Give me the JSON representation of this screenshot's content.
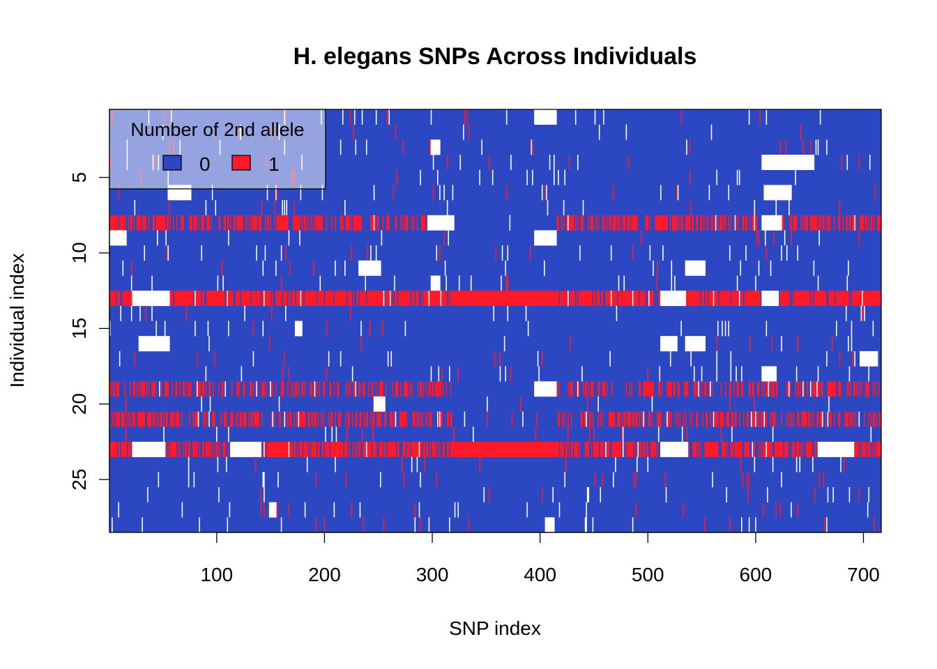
{
  "chart_data": {
    "type": "heatmap",
    "title": "H. elegans SNPs Across Individuals",
    "xlabel": "SNP index",
    "ylabel": "Individual index",
    "xlim": [
      1,
      716
    ],
    "ylim": [
      1,
      28
    ],
    "x_ticks": [
      100,
      200,
      300,
      400,
      500,
      600,
      700
    ],
    "y_ticks": [
      5,
      10,
      15,
      20,
      25
    ],
    "y_reversed": true,
    "n_snps": 716,
    "n_individuals": 28,
    "missing_color": "#FFFFFF",
    "legend": {
      "title": "Number of 2nd allele",
      "placement": "top-left",
      "entries": [
        {
          "label": "0",
          "value": 0,
          "color": "#2B47C2"
        },
        {
          "label": "1",
          "value": 1,
          "color": "#FF1A2A"
        }
      ]
    },
    "heterozygous_individuals": [
      {
        "individual": 8,
        "density": 0.55
      },
      {
        "individual": 13,
        "density": 0.85
      },
      {
        "individual": 19,
        "density": 0.45
      },
      {
        "individual": 21,
        "density": 0.5
      },
      {
        "individual": 23,
        "density": 0.7
      }
    ],
    "solid_blocks": [
      {
        "individual": 13,
        "value": 1,
        "snp_range": [
          318,
          415
        ]
      },
      {
        "individual": 23,
        "value": 1,
        "snp_range": [
          318,
          415
        ]
      }
    ],
    "missing_blocks": [
      {
        "individual": 1,
        "snp_range": [
          395,
          415
        ]
      },
      {
        "individual": 3,
        "snp_range": [
          299,
          307
        ]
      },
      {
        "individual": 4,
        "snp_range": [
          606,
          654
        ]
      },
      {
        "individual": 6,
        "snp_range": [
          55,
          76
        ]
      },
      {
        "individual": 6,
        "snp_range": [
          608,
          633
        ]
      },
      {
        "individual": 8,
        "snp_range": [
          296,
          320
        ]
      },
      {
        "individual": 8,
        "snp_range": [
          606,
          624
        ]
      },
      {
        "individual": 9,
        "snp_range": [
          1,
          16
        ]
      },
      {
        "individual": 9,
        "snp_range": [
          395,
          415
        ]
      },
      {
        "individual": 11,
        "snp_range": [
          232,
          252
        ]
      },
      {
        "individual": 11,
        "snp_range": [
          535,
          553
        ]
      },
      {
        "individual": 12,
        "snp_range": [
          299,
          307
        ]
      },
      {
        "individual": 13,
        "snp_range": [
          22,
          55
        ]
      },
      {
        "individual": 13,
        "snp_range": [
          512,
          535
        ]
      },
      {
        "individual": 13,
        "snp_range": [
          606,
          621
        ]
      },
      {
        "individual": 15,
        "snp_range": [
          173,
          179
        ]
      },
      {
        "individual": 16,
        "snp_range": [
          28,
          56
        ]
      },
      {
        "individual": 16,
        "snp_range": [
          512,
          527
        ]
      },
      {
        "individual": 16,
        "snp_range": [
          535,
          553
        ]
      },
      {
        "individual": 17,
        "snp_range": [
          697,
          713
        ]
      },
      {
        "individual": 18,
        "snp_range": [
          606,
          619
        ]
      },
      {
        "individual": 19,
        "snp_range": [
          395,
          415
        ]
      },
      {
        "individual": 20,
        "snp_range": [
          246,
          256
        ]
      },
      {
        "individual": 23,
        "snp_range": [
          22,
          52
        ]
      },
      {
        "individual": 23,
        "snp_range": [
          113,
          141
        ]
      },
      {
        "individual": 23,
        "snp_range": [
          512,
          537
        ]
      },
      {
        "individual": 23,
        "snp_range": [
          658,
          691
        ]
      },
      {
        "individual": 27,
        "snp_range": [
          149,
          155
        ]
      },
      {
        "individual": 28,
        "snp_range": [
          405,
          413
        ]
      }
    ]
  }
}
